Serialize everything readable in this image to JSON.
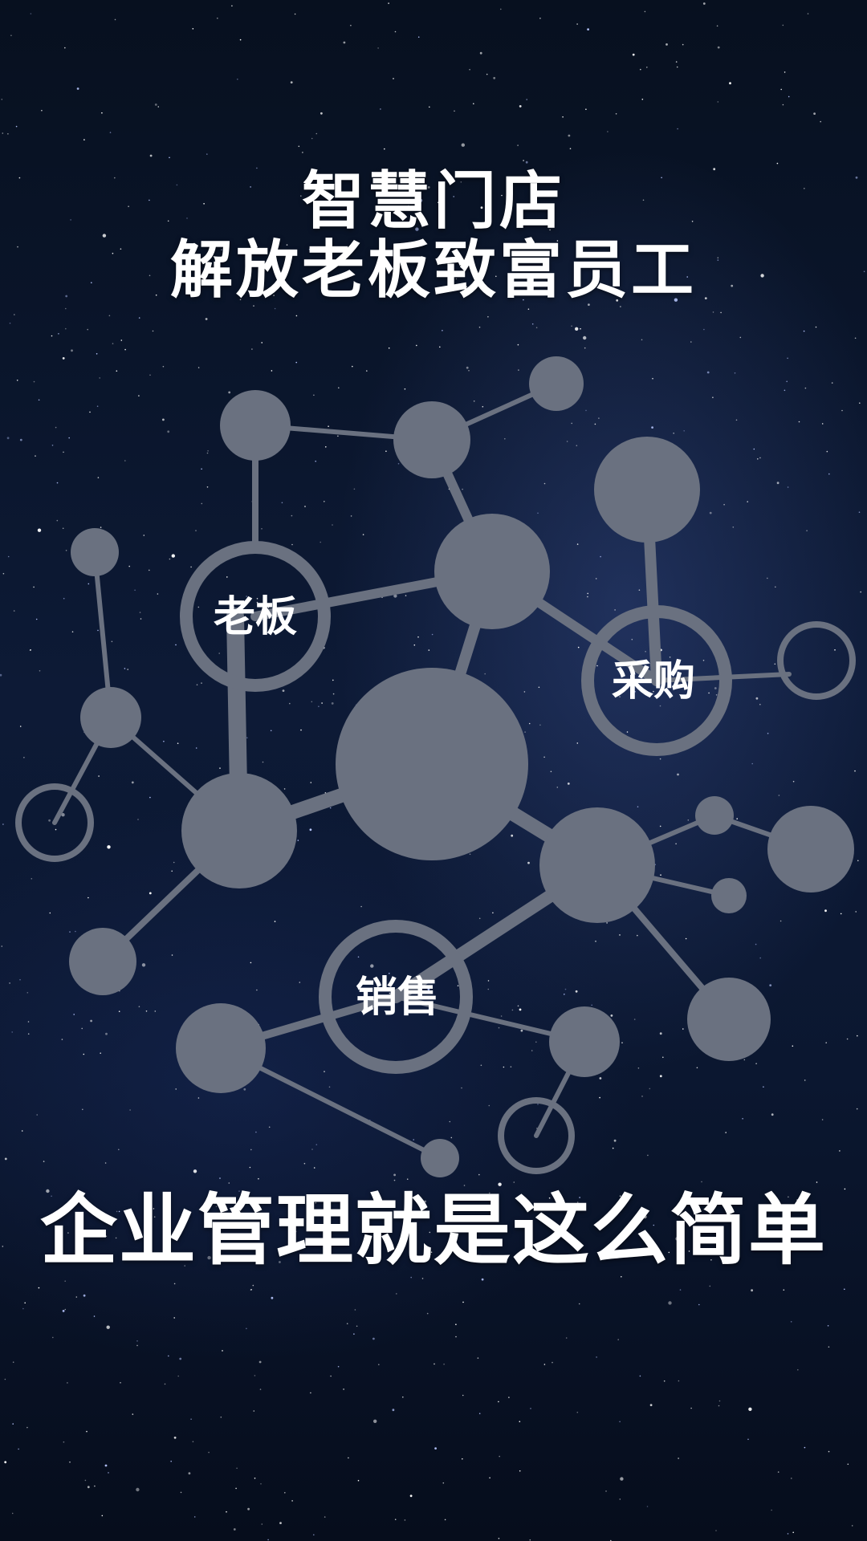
{
  "title": {
    "line1": "智慧门店",
    "line2": "解放老板致富员工"
  },
  "network": {
    "labels": {
      "boss": "老板",
      "purchasing": "采购",
      "sales": "销售"
    },
    "node_color": "#6a7180",
    "background_color": "#0b1730"
  },
  "slogan": "企业管理就是这么简单"
}
